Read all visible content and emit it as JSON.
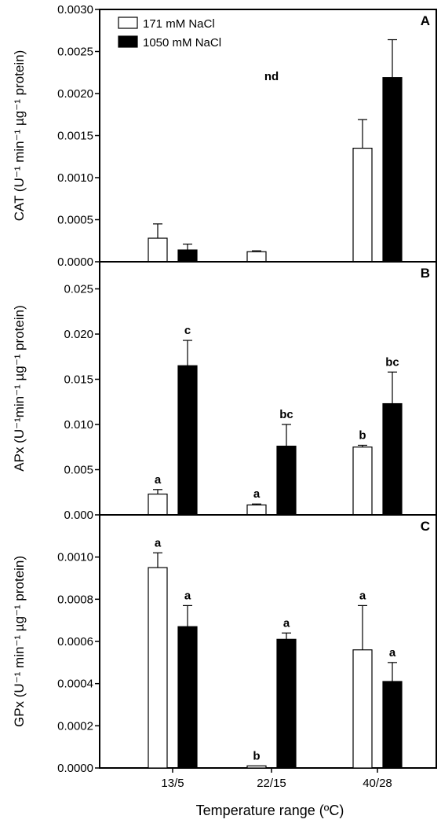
{
  "chart_data": [
    {
      "type": "bar",
      "panel": "A",
      "ylabel": "CAT (U⁻¹ min⁻¹ µg⁻¹ protein)",
      "ylim": [
        0,
        0.003
      ],
      "yticks": [
        "0.0000",
        "0.0005",
        "0.0010",
        "0.0015",
        "0.0020",
        "0.0025",
        "0.0030"
      ],
      "categories": [
        "13/5",
        "22/15",
        "40/28"
      ],
      "series": [
        {
          "name": "171 mM NaCl",
          "values": [
            0.00028,
            0.00012,
            0.00135
          ],
          "errors": [
            0.00017,
            1e-05,
            0.00034
          ],
          "labels": [
            "",
            "",
            ""
          ]
        },
        {
          "name": "1050 mM NaCl",
          "values": [
            0.00014,
            null,
            0.00219
          ],
          "errors": [
            7e-05,
            null,
            0.00045
          ],
          "labels": [
            "",
            "nd",
            ""
          ]
        }
      ],
      "legend": "top-left",
      "grid": false
    },
    {
      "type": "bar",
      "panel": "B",
      "ylabel": "APx (U⁻¹min⁻¹ µg⁻¹ protein)",
      "ylim": [
        0,
        0.028
      ],
      "yticks": [
        "0.000",
        "0.005",
        "0.010",
        "0.015",
        "0.020",
        "0.025"
      ],
      "categories": [
        "13/5",
        "22/15",
        "40/28"
      ],
      "series": [
        {
          "name": "171 mM NaCl",
          "values": [
            0.0023,
            0.0011,
            0.0075
          ],
          "errors": [
            0.0005,
            0.0001,
            0.0002
          ],
          "labels": [
            "a",
            "a",
            "b"
          ]
        },
        {
          "name": "1050 mM NaCl",
          "values": [
            0.0165,
            0.0076,
            0.0123
          ],
          "errors": [
            0.0028,
            0.0024,
            0.0035
          ],
          "labels": [
            "c",
            "bc",
            "bc"
          ]
        }
      ],
      "grid": false
    },
    {
      "type": "bar",
      "panel": "C",
      "ylabel": "GPx (U⁻¹ min⁻¹ µg⁻¹ protein)",
      "ylim": [
        0,
        0.0012
      ],
      "yticks": [
        "0.0000",
        "0.0002",
        "0.0004",
        "0.0006",
        "0.0008",
        "0.0010"
      ],
      "categories": [
        "13/5",
        "22/15",
        "40/28"
      ],
      "series": [
        {
          "name": "171 mM NaCl",
          "values": [
            0.00095,
            1e-05,
            0.00056
          ],
          "errors": [
            7e-05,
            0.0,
            0.00021
          ],
          "labels": [
            "a",
            "b",
            "a"
          ]
        },
        {
          "name": "1050 mM NaCl",
          "values": [
            0.00067,
            0.00061,
            0.00041
          ],
          "errors": [
            0.0001,
            3e-05,
            9e-05
          ],
          "labels": [
            "a",
            "a",
            "a"
          ]
        }
      ],
      "grid": false
    }
  ],
  "xlabel": "Temperature range (ºC)",
  "colors": {
    "series_171": "#ffffff",
    "series_1050": "#000000",
    "axis": "#000000"
  }
}
